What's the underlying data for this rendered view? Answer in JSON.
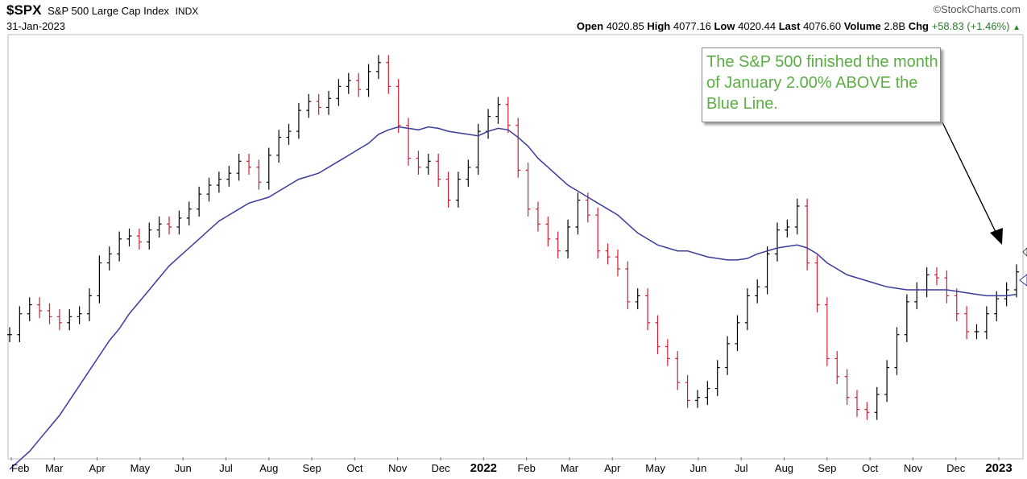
{
  "header": {
    "ticker": "$SPX",
    "index_name": "S&P 500 Large Cap Index",
    "exchange": "INDX",
    "date": "31-Jan-2023",
    "brand": "©StockCharts.com",
    "open_label": "Open",
    "open": "4020.85",
    "high_label": "High",
    "high": "4077.16",
    "low_label": "Low",
    "low": "4020.44",
    "last_label": "Last",
    "last": "4076.60",
    "volume_label": "Volume",
    "volume": "2.8B",
    "chg_label": "Chg",
    "chg": "+58.83 (+1.46%)",
    "up_arrow": "▲"
  },
  "annotation": {
    "text": "The S&P 500 finished the month of January 2.00% ABOVE the Blue Line."
  },
  "colors": {
    "up_bar": "#000000",
    "down_bar": "#cc1f33",
    "moving_average": "#3b3b9e",
    "annotation_text": "#5cad45"
  },
  "chart_data": {
    "type": "line",
    "x_ticks": [
      "Feb",
      "Mar",
      "Apr",
      "May",
      "Jun",
      "Jul",
      "Aug",
      "Sep",
      "Oct",
      "Nov",
      "Dec",
      "2022",
      "Feb",
      "Mar",
      "Apr",
      "May",
      "Jun",
      "Jul",
      "Aug",
      "Sep",
      "Oct",
      "Nov",
      "Dec",
      "2023"
    ],
    "bold_ticks": [
      "2022",
      "2023"
    ],
    "ylim": [
      3450,
      4850
    ],
    "grid": false,
    "series": [
      {
        "values": [
          3860,
          3930,
          3960,
          3940,
          3920,
          3900,
          3920,
          3930,
          3990,
          4100,
          4130,
          4180,
          4190,
          4170,
          4210,
          4230,
          4220,
          4250,
          4280,
          4330,
          4360,
          4380,
          4400,
          4440,
          4420,
          4370,
          4460,
          4520,
          4540,
          4610,
          4640,
          4620,
          4650,
          4690,
          4710,
          4680,
          4740,
          4770,
          4690,
          4560,
          4450,
          4420,
          4440,
          4380,
          4310,
          4380,
          4420,
          4540,
          4590,
          4630,
          4560,
          4410,
          4280,
          4230,
          4180,
          4140,
          4220,
          4310,
          4260,
          4140,
          4120,
          4080,
          3970,
          3990,
          3900,
          3820,
          3780,
          3700,
          3640,
          3650,
          3680,
          3750,
          3830,
          3900,
          3990,
          4020,
          4130,
          4210,
          4220,
          4290,
          4100,
          3960,
          3780,
          3720,
          3650,
          3610,
          3600,
          3660,
          3750,
          3860,
          3970,
          4010,
          4060,
          4050,
          3990,
          3930,
          3870,
          3870,
          3930,
          3980,
          4010,
          4070
        ]
      },
      {
        "name": "moving average",
        "values": [
          3410,
          3440,
          3470,
          3510,
          3550,
          3590,
          3640,
          3690,
          3740,
          3790,
          3840,
          3880,
          3930,
          3970,
          4010,
          4050,
          4090,
          4120,
          4150,
          4180,
          4210,
          4240,
          4260,
          4280,
          4300,
          4310,
          4320,
          4340,
          4360,
          4380,
          4390,
          4400,
          4420,
          4440,
          4460,
          4480,
          4500,
          4530,
          4545,
          4555,
          4550,
          4545,
          4555,
          4550,
          4540,
          4535,
          4530,
          4525,
          4540,
          4550,
          4545,
          4520,
          4490,
          4450,
          4420,
          4390,
          4360,
          4340,
          4320,
          4300,
          4280,
          4260,
          4230,
          4200,
          4180,
          4160,
          4150,
          4140,
          4140,
          4130,
          4120,
          4115,
          4110,
          4110,
          4115,
          4130,
          4140,
          4150,
          4155,
          4160,
          4150,
          4130,
          4100,
          4080,
          4060,
          4050,
          4040,
          4030,
          4020,
          4015,
          4010,
          4010,
          4010,
          4010,
          4010,
          4005,
          4000,
          3995,
          3990,
          3990,
          3990,
          3995
        ]
      }
    ]
  }
}
